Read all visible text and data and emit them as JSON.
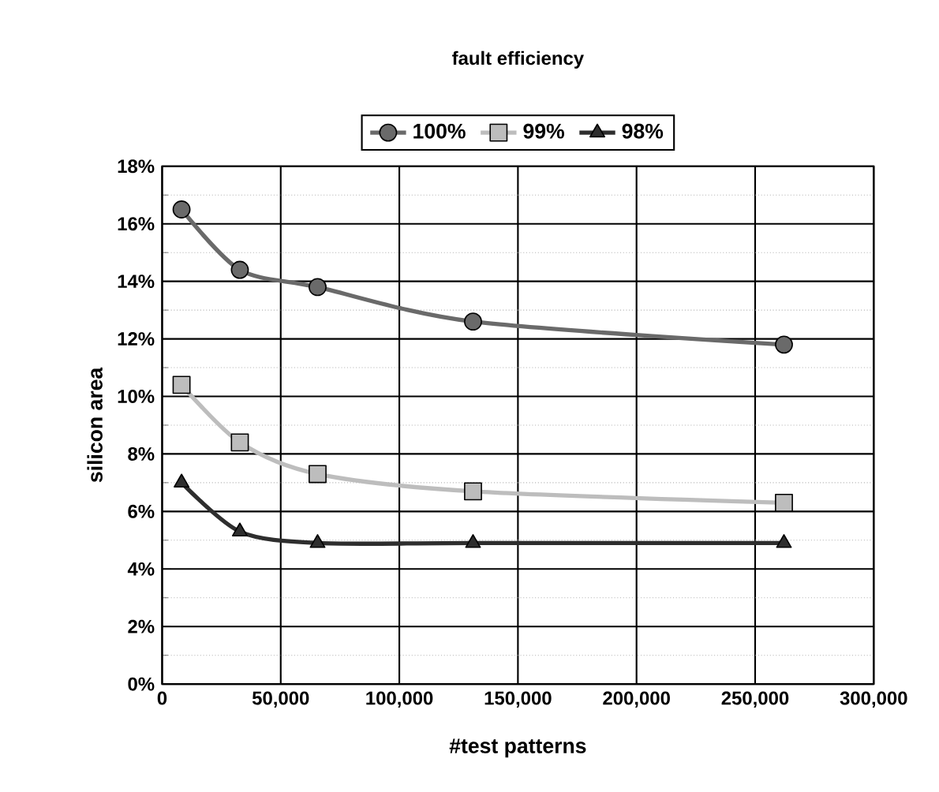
{
  "chart_data": {
    "type": "line",
    "legend_title": "fault efficiency",
    "xlabel": "#test patterns",
    "ylabel": "silicon area",
    "x": [
      8192,
      32768,
      65536,
      131072,
      262144
    ],
    "series": [
      {
        "name": "100%",
        "color": "#6a6a6a",
        "marker": "circle",
        "values": [
          16.5,
          14.4,
          13.8,
          12.6,
          11.8
        ]
      },
      {
        "name": "99%",
        "color": "#bdbdbd",
        "marker": "square",
        "values": [
          10.4,
          8.4,
          7.3,
          6.7,
          6.3
        ]
      },
      {
        "name": "98%",
        "color": "#2e2e2e",
        "marker": "triangle",
        "values": [
          7.0,
          5.3,
          4.9,
          4.9,
          4.9
        ]
      }
    ],
    "xlim": [
      0,
      300000
    ],
    "xticks": [
      {
        "value": 0,
        "label": "0"
      },
      {
        "value": 50000,
        "label": "50,000"
      },
      {
        "value": 100000,
        "label": "100,000"
      },
      {
        "value": 150000,
        "label": "150,000"
      },
      {
        "value": 200000,
        "label": "200,000"
      },
      {
        "value": 250000,
        "label": "250,000"
      },
      {
        "value": 300000,
        "label": "300,000"
      }
    ],
    "ylim": [
      0,
      18
    ],
    "yticks": [
      {
        "value": 0,
        "label": "0%"
      },
      {
        "value": 2,
        "label": "2%"
      },
      {
        "value": 4,
        "label": "4%"
      },
      {
        "value": 6,
        "label": "6%"
      },
      {
        "value": 8,
        "label": "8%"
      },
      {
        "value": 10,
        "label": "10%"
      },
      {
        "value": 12,
        "label": "12%"
      },
      {
        "value": 14,
        "label": "14%"
      },
      {
        "value": 16,
        "label": "16%"
      },
      {
        "value": 18,
        "label": "18%"
      }
    ],
    "grid": true,
    "legend": "top"
  }
}
